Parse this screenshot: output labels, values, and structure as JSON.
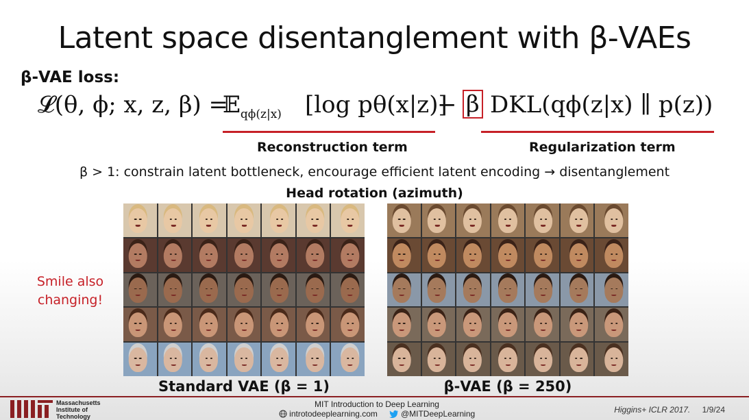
{
  "slide": {
    "title": "Latent space disentanglement with β-VAEs",
    "loss_label": "β-VAE loss:",
    "formula": {
      "lhs": "𝓛(θ, ϕ; x, z, β) =",
      "expectation": "𝔼",
      "expectation_sub": "qϕ(z|x)",
      "reconstruction": "[log pθ(x|z)]",
      "minus": "−",
      "beta": "β",
      "kl": "DKL(qϕ(z|x) ∥ p(z))"
    },
    "reconstruction_label": "Reconstruction term",
    "regularization_label": "Regularization term",
    "beta_note": "β > 1: constrain latent bottleneck, encourage efficient latent encoding → disentanglement",
    "head_rotation_label": "Head rotation (azimuth)",
    "smile_note_line1": "Smile also",
    "smile_note_line2": "changing!",
    "standard_caption": "Standard VAE (β = 1)",
    "beta_caption": "β-VAE (β = 250)",
    "accent_color": "#c62027"
  },
  "footer": {
    "institute_line1": "Massachusetts",
    "institute_line2": "Institute of",
    "institute_line3": "Technology",
    "course": "MIT Introduction to Deep Learning",
    "website": "introtodeeplearning.com",
    "twitter": "@MITDeepLearning",
    "citation": "Higgins+ ICLR 2017.",
    "page": "1/9/24"
  }
}
